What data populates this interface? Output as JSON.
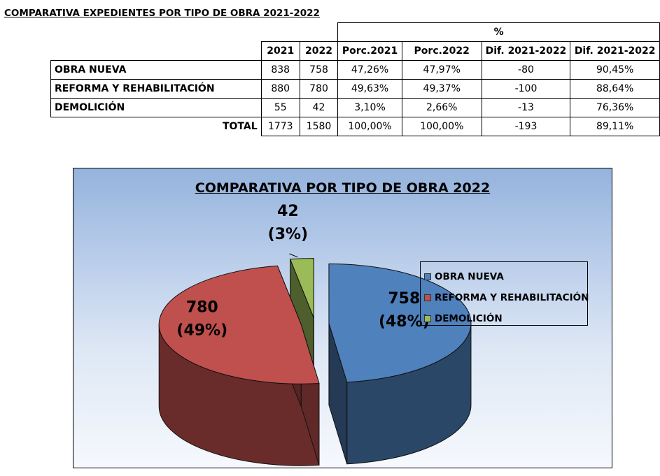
{
  "page_title": "COMPARATIVA EXPEDIENTES  POR TIPO DE OBRA 2021-2022",
  "table": {
    "group_header": "%",
    "columns": [
      "2021",
      "2022",
      "Porc.2021",
      "Porc.2022",
      "Dif. 2021-2022",
      "Dif. 2021-2022"
    ],
    "rows": [
      {
        "label": "OBRA NUEVA",
        "values": [
          "838",
          "758",
          "47,26%",
          "47,97%",
          "-80",
          "90,45%"
        ]
      },
      {
        "label": "REFORMA Y REHABILITACIÓN",
        "values": [
          "880",
          "780",
          "49,63%",
          "49,37%",
          "-100",
          "88,64%"
        ]
      },
      {
        "label": "DEMOLICIÓN",
        "values": [
          "55",
          "42",
          "3,10%",
          "2,66%",
          "-13",
          "76,36%"
        ]
      }
    ],
    "total": {
      "label": "TOTAL",
      "values": [
        "1773",
        "1580",
        "100,00%",
        "100,00%",
        "-193",
        "89,11%"
      ]
    }
  },
  "chart_data": {
    "type": "pie",
    "title": "COMPARATIVA POR TIPO DE OBRA 2022",
    "exploded": true,
    "style": "3d",
    "legend_position": "right",
    "slices": [
      {
        "name": "OBRA NUEVA",
        "value": 758,
        "label_value": "758",
        "label_pct": "(48%)",
        "color": "#4f81bd"
      },
      {
        "name": "REFORMA Y REHABILITACIÓN",
        "value": 780,
        "label_value": "780",
        "label_pct": "(49%)",
        "color": "#c0504d"
      },
      {
        "name": "DEMOLICIÓN",
        "value": 42,
        "label_value": "42",
        "label_pct": "(3%)",
        "color": "#9bbb59"
      }
    ]
  }
}
